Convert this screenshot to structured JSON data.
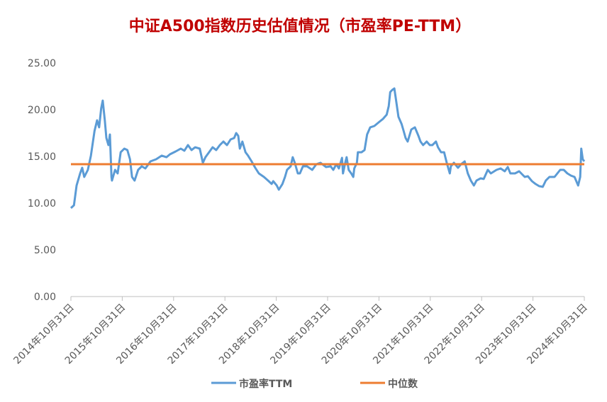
{
  "chart_data": {
    "type": "line",
    "title": "中证A500指数历史估值情况（市盈率PE-TTM）",
    "xlabel": "",
    "ylabel": "",
    "ylim": [
      0,
      25
    ],
    "xlim": [
      2014.83,
      2024.83
    ],
    "y_ticks": [
      "0.00",
      "5.00",
      "10.00",
      "15.00",
      "20.00",
      "25.00"
    ],
    "y_tick_values": [
      0,
      5,
      10,
      15,
      20,
      25
    ],
    "x_ticks": [
      "2014年10月31日",
      "2015年10月31日",
      "2016年10月31日",
      "2017年10月31日",
      "2018年10月31日",
      "2019年10月31日",
      "2020年10月31日",
      "2021年10月31日",
      "2022年10月31日",
      "2023年10月31日",
      "2024年10月31日"
    ],
    "x_tick_values": [
      2014.83,
      2015.83,
      2016.83,
      2017.83,
      2018.83,
      2019.83,
      2020.83,
      2021.83,
      2022.83,
      2023.83,
      2024.83
    ],
    "grid": false,
    "legend_position": "bottom",
    "series": [
      {
        "name": "市盈率TTM",
        "color": "#5b9bd5",
        "points": [
          [
            2014.83,
            9.47
          ],
          [
            2014.89,
            9.77
          ],
          [
            2014.94,
            11.89
          ],
          [
            2015.01,
            13.18
          ],
          [
            2015.05,
            13.79
          ],
          [
            2015.09,
            12.8
          ],
          [
            2015.16,
            13.56
          ],
          [
            2015.22,
            15.08
          ],
          [
            2015.29,
            17.73
          ],
          [
            2015.34,
            18.86
          ],
          [
            2015.38,
            18.11
          ],
          [
            2015.42,
            20.15
          ],
          [
            2015.45,
            20.98
          ],
          [
            2015.49,
            18.86
          ],
          [
            2015.52,
            16.97
          ],
          [
            2015.56,
            16.21
          ],
          [
            2015.59,
            17.35
          ],
          [
            2015.62,
            12.8
          ],
          [
            2015.63,
            12.42
          ],
          [
            2015.69,
            13.56
          ],
          [
            2015.74,
            13.18
          ],
          [
            2015.8,
            15.45
          ],
          [
            2015.87,
            15.83
          ],
          [
            2015.93,
            15.68
          ],
          [
            2015.98,
            14.7
          ],
          [
            2016.02,
            12.8
          ],
          [
            2016.07,
            12.42
          ],
          [
            2016.14,
            13.56
          ],
          [
            2016.21,
            13.94
          ],
          [
            2016.28,
            13.71
          ],
          [
            2016.38,
            14.47
          ],
          [
            2016.49,
            14.7
          ],
          [
            2016.6,
            15.08
          ],
          [
            2016.69,
            14.92
          ],
          [
            2016.76,
            15.23
          ],
          [
            2016.87,
            15.53
          ],
          [
            2016.97,
            15.83
          ],
          [
            2017.04,
            15.61
          ],
          [
            2017.11,
            16.21
          ],
          [
            2017.18,
            15.68
          ],
          [
            2017.25,
            15.98
          ],
          [
            2017.34,
            15.83
          ],
          [
            2017.4,
            14.32
          ],
          [
            2017.45,
            14.92
          ],
          [
            2017.52,
            15.45
          ],
          [
            2017.59,
            15.98
          ],
          [
            2017.66,
            15.68
          ],
          [
            2017.73,
            16.21
          ],
          [
            2017.8,
            16.59
          ],
          [
            2017.87,
            16.21
          ],
          [
            2017.94,
            16.82
          ],
          [
            2018.01,
            16.97
          ],
          [
            2018.05,
            17.5
          ],
          [
            2018.09,
            17.2
          ],
          [
            2018.12,
            15.83
          ],
          [
            2018.17,
            16.59
          ],
          [
            2018.23,
            15.45
          ],
          [
            2018.28,
            15.08
          ],
          [
            2018.35,
            14.47
          ],
          [
            2018.42,
            13.79
          ],
          [
            2018.49,
            13.18
          ],
          [
            2018.59,
            12.8
          ],
          [
            2018.67,
            12.42
          ],
          [
            2018.74,
            12.05
          ],
          [
            2018.77,
            12.35
          ],
          [
            2018.84,
            11.89
          ],
          [
            2018.88,
            11.44
          ],
          [
            2018.95,
            12.05
          ],
          [
            2019.0,
            12.8
          ],
          [
            2019.04,
            13.56
          ],
          [
            2019.11,
            13.94
          ],
          [
            2019.15,
            14.92
          ],
          [
            2019.19,
            14.32
          ],
          [
            2019.25,
            13.18
          ],
          [
            2019.29,
            13.18
          ],
          [
            2019.35,
            13.94
          ],
          [
            2019.43,
            13.94
          ],
          [
            2019.53,
            13.56
          ],
          [
            2019.61,
            14.17
          ],
          [
            2019.69,
            14.32
          ],
          [
            2019.8,
            13.86
          ],
          [
            2019.89,
            13.94
          ],
          [
            2019.94,
            13.56
          ],
          [
            2020.0,
            14.17
          ],
          [
            2020.05,
            13.71
          ],
          [
            2020.11,
            14.85
          ],
          [
            2020.13,
            13.18
          ],
          [
            2020.18,
            14.47
          ],
          [
            2020.2,
            14.92
          ],
          [
            2020.24,
            13.56
          ],
          [
            2020.29,
            13.18
          ],
          [
            2020.33,
            12.8
          ],
          [
            2020.35,
            13.71
          ],
          [
            2020.4,
            14.32
          ],
          [
            2020.42,
            15.45
          ],
          [
            2020.49,
            15.45
          ],
          [
            2020.55,
            15.68
          ],
          [
            2020.6,
            17.35
          ],
          [
            2020.66,
            18.11
          ],
          [
            2020.74,
            18.26
          ],
          [
            2020.84,
            18.71
          ],
          [
            2020.91,
            19.02
          ],
          [
            2020.98,
            19.47
          ],
          [
            2021.02,
            20.38
          ],
          [
            2021.05,
            21.89
          ],
          [
            2021.09,
            22.12
          ],
          [
            2021.13,
            22.27
          ],
          [
            2021.16,
            21.14
          ],
          [
            2021.21,
            19.24
          ],
          [
            2021.27,
            18.48
          ],
          [
            2021.31,
            17.73
          ],
          [
            2021.35,
            16.97
          ],
          [
            2021.39,
            16.59
          ],
          [
            2021.46,
            17.88
          ],
          [
            2021.53,
            18.11
          ],
          [
            2021.6,
            17.2
          ],
          [
            2021.64,
            16.59
          ],
          [
            2021.69,
            16.21
          ],
          [
            2021.76,
            16.59
          ],
          [
            2021.82,
            16.21
          ],
          [
            2021.87,
            16.21
          ],
          [
            2021.94,
            16.59
          ],
          [
            2021.98,
            15.98
          ],
          [
            2022.04,
            15.45
          ],
          [
            2022.1,
            15.45
          ],
          [
            2022.15,
            14.32
          ],
          [
            2022.21,
            13.18
          ],
          [
            2022.23,
            13.94
          ],
          [
            2022.29,
            14.32
          ],
          [
            2022.37,
            13.79
          ],
          [
            2022.43,
            14.17
          ],
          [
            2022.5,
            14.47
          ],
          [
            2022.56,
            13.18
          ],
          [
            2022.62,
            12.42
          ],
          [
            2022.68,
            11.89
          ],
          [
            2022.73,
            12.42
          ],
          [
            2022.81,
            12.65
          ],
          [
            2022.87,
            12.58
          ],
          [
            2022.95,
            13.56
          ],
          [
            2023.01,
            13.18
          ],
          [
            2023.12,
            13.56
          ],
          [
            2023.2,
            13.71
          ],
          [
            2023.28,
            13.41
          ],
          [
            2023.34,
            13.86
          ],
          [
            2023.39,
            13.18
          ],
          [
            2023.48,
            13.18
          ],
          [
            2023.56,
            13.41
          ],
          [
            2023.67,
            12.8
          ],
          [
            2023.73,
            12.88
          ],
          [
            2023.81,
            12.35
          ],
          [
            2023.88,
            12.05
          ],
          [
            2023.95,
            11.82
          ],
          [
            2024.02,
            11.74
          ],
          [
            2024.08,
            12.42
          ],
          [
            2024.15,
            12.8
          ],
          [
            2024.25,
            12.8
          ],
          [
            2024.36,
            13.56
          ],
          [
            2024.43,
            13.56
          ],
          [
            2024.5,
            13.18
          ],
          [
            2024.57,
            12.95
          ],
          [
            2024.64,
            12.8
          ],
          [
            2024.71,
            11.89
          ],
          [
            2024.75,
            12.8
          ],
          [
            2024.77,
            15.83
          ],
          [
            2024.8,
            14.7
          ],
          [
            2024.83,
            14.47
          ]
        ]
      },
      {
        "name": "中位数",
        "color": "#ed7d31",
        "points": [
          [
            2014.83,
            14.17
          ],
          [
            2024.83,
            14.17
          ]
        ]
      }
    ]
  }
}
